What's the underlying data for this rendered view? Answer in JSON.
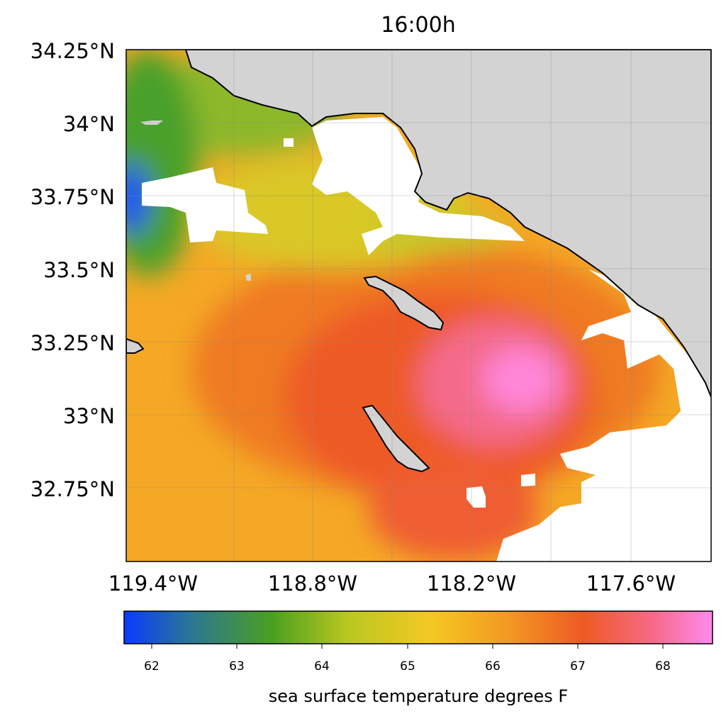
{
  "map": {
    "title": "16:00h",
    "lat_labels": [
      "34.25°N",
      "34°N",
      "33.75°N",
      "33.5°N",
      "33.25°N",
      "33°N",
      "32.75°N"
    ],
    "lon_labels": [
      "119.4°W",
      "118.8°W",
      "118.2°W",
      "117.6°W"
    ],
    "land_color": "#d3d3d3",
    "nodata_color": "#ffffff"
  },
  "colorbar": {
    "label": "sea surface temperature degrees F",
    "ticks": [
      "62",
      "63",
      "64",
      "65",
      "66",
      "67",
      "68"
    ],
    "colors": [
      "#0a3cff",
      "#1f6fb0",
      "#4a9a3a",
      "#5aaa18",
      "#c8cc25",
      "#f2c825",
      "#f7a623",
      "#ef6d22",
      "#f0522e",
      "#f86a86",
      "#ff88ee"
    ]
  }
}
